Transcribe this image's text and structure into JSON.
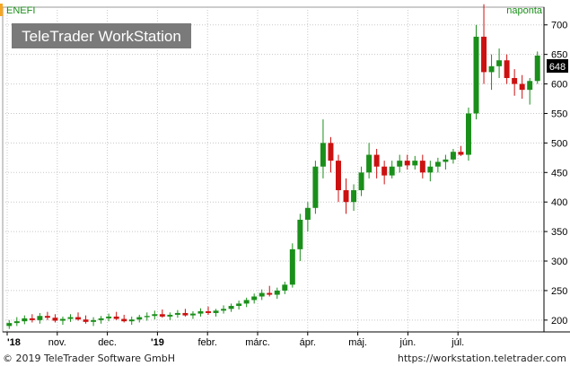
{
  "chart": {
    "symbol": "ENEFI",
    "period": "naponta",
    "watermark": "TeleTrader WorkStation",
    "last_price_label": "648"
  },
  "footer": {
    "copyright": "© 2019 TeleTrader Software GmbH",
    "url": "https://workstation.teletrader.com"
  },
  "colors": {
    "up": "#1a8f1a",
    "down": "#cc1111",
    "grid": "#c8c8c8",
    "watermark_bg": "#7a7a7a",
    "accent": "#f5a623"
  },
  "chart_data": {
    "type": "candlestick",
    "x_ticks": [
      "'18",
      "nov.",
      "dec.",
      "'19",
      "febr.",
      "márc.",
      "ápr.",
      "máj.",
      "jún.",
      "júl."
    ],
    "y_ticks": [
      200,
      250,
      300,
      350,
      400,
      450,
      500,
      550,
      600,
      650,
      700
    ],
    "ylim": [
      180,
      730
    ],
    "grid": true,
    "last_value": 648,
    "candles": [
      [
        190,
        200,
        185,
        195
      ],
      [
        195,
        205,
        190,
        198
      ],
      [
        198,
        208,
        193,
        203
      ],
      [
        203,
        210,
        196,
        200
      ],
      [
        200,
        212,
        194,
        207
      ],
      [
        207,
        214,
        200,
        204
      ],
      [
        204,
        210,
        196,
        199
      ],
      [
        199,
        206,
        192,
        202
      ],
      [
        202,
        210,
        197,
        205
      ],
      [
        205,
        213,
        199,
        201
      ],
      [
        201,
        208,
        194,
        197
      ],
      [
        197,
        205,
        190,
        200
      ],
      [
        200,
        207,
        194,
        203
      ],
      [
        203,
        211,
        198,
        206
      ],
      [
        206,
        214,
        200,
        202
      ],
      [
        202,
        209,
        196,
        198
      ],
      [
        198,
        206,
        192,
        201
      ],
      [
        201,
        209,
        196,
        205
      ],
      [
        205,
        213,
        199,
        207
      ],
      [
        207,
        216,
        201,
        210
      ],
      [
        210,
        218,
        204,
        206
      ],
      [
        206,
        213,
        200,
        209
      ],
      [
        209,
        217,
        204,
        212
      ],
      [
        212,
        219,
        206,
        208
      ],
      [
        208,
        215,
        202,
        211
      ],
      [
        211,
        220,
        206,
        215
      ],
      [
        215,
        223,
        209,
        212
      ],
      [
        212,
        219,
        206,
        216
      ],
      [
        216,
        225,
        211,
        219
      ],
      [
        219,
        228,
        214,
        224
      ],
      [
        224,
        233,
        218,
        228
      ],
      [
        228,
        238,
        222,
        234
      ],
      [
        234,
        245,
        228,
        240
      ],
      [
        240,
        252,
        234,
        246
      ],
      [
        246,
        258,
        240,
        243
      ],
      [
        243,
        255,
        236,
        250
      ],
      [
        250,
        265,
        244,
        260
      ],
      [
        260,
        330,
        255,
        320
      ],
      [
        320,
        380,
        300,
        370
      ],
      [
        370,
        400,
        350,
        390
      ],
      [
        390,
        470,
        380,
        460
      ],
      [
        460,
        540,
        440,
        500
      ],
      [
        500,
        510,
        450,
        470
      ],
      [
        470,
        480,
        400,
        420
      ],
      [
        420,
        440,
        380,
        400
      ],
      [
        400,
        430,
        385,
        420
      ],
      [
        420,
        460,
        410,
        450
      ],
      [
        450,
        500,
        440,
        480
      ],
      [
        480,
        490,
        440,
        460
      ],
      [
        460,
        470,
        430,
        445
      ],
      [
        445,
        470,
        440,
        460
      ],
      [
        460,
        480,
        450,
        470
      ],
      [
        470,
        480,
        455,
        462
      ],
      [
        462,
        478,
        455,
        470
      ],
      [
        470,
        480,
        440,
        450
      ],
      [
        450,
        470,
        435,
        460
      ],
      [
        460,
        475,
        450,
        468
      ],
      [
        468,
        480,
        455,
        472
      ],
      [
        472,
        490,
        465,
        485
      ],
      [
        485,
        495,
        478,
        480
      ],
      [
        480,
        560,
        470,
        550
      ],
      [
        550,
        700,
        540,
        680
      ],
      [
        680,
        735,
        600,
        620
      ],
      [
        620,
        650,
        590,
        630
      ],
      [
        630,
        660,
        610,
        640
      ],
      [
        640,
        650,
        600,
        610
      ],
      [
        610,
        625,
        580,
        600
      ],
      [
        600,
        615,
        575,
        590
      ],
      [
        590,
        610,
        565,
        605
      ],
      [
        605,
        655,
        600,
        648
      ]
    ]
  }
}
